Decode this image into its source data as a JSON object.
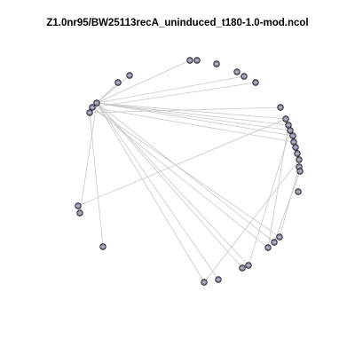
{
  "title": "Z1.0nr95/BW25113recA_uninduced_t180-1.0-mod.ncol",
  "colors": {
    "edge": "#c8c8c8",
    "node_fill": "#8a8aa6",
    "node_stroke": "#1a1a1a",
    "node_mark": "#ffffff"
  },
  "graph": {
    "nodes": [
      {
        "id": "n1"
      },
      {
        "id": "n2"
      },
      {
        "id": "n3"
      },
      {
        "id": "n4"
      },
      {
        "id": "n5"
      },
      {
        "id": "n6"
      },
      {
        "id": "n7"
      },
      {
        "id": "n8"
      },
      {
        "id": "n9"
      },
      {
        "id": "n10"
      },
      {
        "id": "n11"
      },
      {
        "id": "n12"
      },
      {
        "id": "n13"
      },
      {
        "id": "n14"
      },
      {
        "id": "n15"
      },
      {
        "id": "n16"
      },
      {
        "id": "n17"
      },
      {
        "id": "n18"
      },
      {
        "id": "n19"
      },
      {
        "id": "n20"
      },
      {
        "id": "n21"
      },
      {
        "id": "n22"
      },
      {
        "id": "n23"
      },
      {
        "id": "n24"
      },
      {
        "id": "n25"
      },
      {
        "id": "n26"
      },
      {
        "id": "n27"
      },
      {
        "id": "n28"
      },
      {
        "id": "n29"
      },
      {
        "id": "n30"
      },
      {
        "id": "n31"
      },
      {
        "id": "n32"
      },
      {
        "id": "n33"
      },
      {
        "id": "n34"
      },
      {
        "id": "n35"
      },
      {
        "id": "n36"
      },
      {
        "id": "n37"
      },
      {
        "id": "n38"
      },
      {
        "id": "n39"
      }
    ],
    "edges": [
      [
        "n1",
        "n4"
      ],
      [
        "n1",
        "n5"
      ],
      [
        "n1",
        "n6"
      ],
      [
        "n1",
        "n10"
      ],
      [
        "n1",
        "n13"
      ],
      [
        "n1",
        "n14"
      ],
      [
        "n1",
        "n15"
      ],
      [
        "n1",
        "n16"
      ],
      [
        "n1",
        "n25"
      ],
      [
        "n1",
        "n28"
      ],
      [
        "n1",
        "n31"
      ],
      [
        "n2",
        "n4"
      ],
      [
        "n2",
        "n11"
      ],
      [
        "n2",
        "n17"
      ],
      [
        "n3",
        "n12"
      ],
      [
        "n3",
        "n26"
      ],
      [
        "n1",
        "n32"
      ],
      [
        "n1",
        "n33"
      ],
      [
        "n2",
        "n27"
      ],
      [
        "n3",
        "n36"
      ],
      [
        "n2",
        "n29"
      ],
      [
        "n1",
        "n30"
      ],
      [
        "n17",
        "n34"
      ],
      [
        "n17",
        "n35"
      ],
      [
        "n17",
        "n38"
      ],
      [
        "n17",
        "n37"
      ],
      [
        "n18",
        "n39"
      ],
      [
        "n19",
        "n34"
      ],
      [
        "n20",
        "n33"
      ],
      [
        "n15",
        "n30"
      ],
      [
        "n16",
        "n36"
      ],
      [
        "n21",
        "n27"
      ],
      [
        "n22",
        "n28"
      ],
      [
        "n13",
        "n24"
      ],
      [
        "n14",
        "n29"
      ]
    ]
  }
}
